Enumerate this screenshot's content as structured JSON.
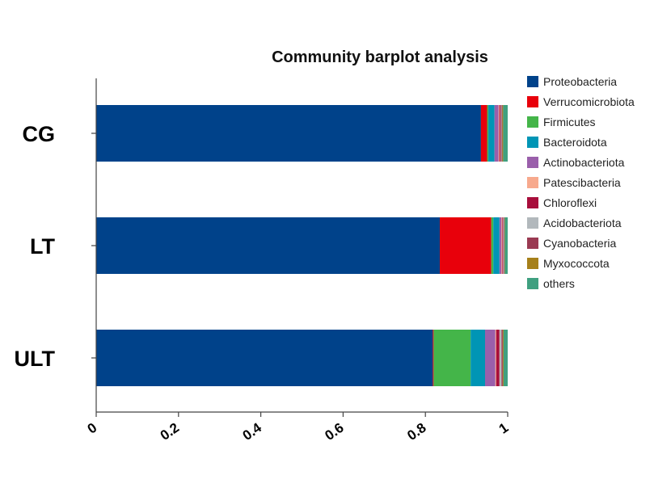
{
  "chart_data": {
    "type": "bar",
    "orientation": "horizontal",
    "stacked": true,
    "title": "Community barplot analysis",
    "xlabel": "",
    "ylabel": "",
    "xlim": [
      0,
      1
    ],
    "x_ticks": [
      "0",
      "0.2",
      "0.4",
      "0.6",
      "0.8",
      "1"
    ],
    "categories": [
      "CG",
      "LT",
      "ULT"
    ],
    "grid": false,
    "legend_position": "right",
    "series": [
      {
        "name": "Proteobacteria",
        "color": "#00428A",
        "values": [
          0.935,
          0.835,
          0.818
        ]
      },
      {
        "name": "Verrucomicrobiota",
        "color": "#E8000B",
        "values": [
          0.015,
          0.125,
          0.002
        ]
      },
      {
        "name": "Firmicutes",
        "color": "#44B549",
        "values": [
          0.003,
          0.005,
          0.09
        ]
      },
      {
        "name": "Bacteroidota",
        "color": "#0095B5",
        "values": [
          0.015,
          0.015,
          0.035
        ]
      },
      {
        "name": "Actinobacteriota",
        "color": "#9A5FAB",
        "values": [
          0.01,
          0.005,
          0.025
        ]
      },
      {
        "name": "Patescibacteria",
        "color": "#F7A98D",
        "values": [
          0.002,
          0.002,
          0.002
        ]
      },
      {
        "name": "Chloroflexi",
        "color": "#A80E3B",
        "values": [
          0.003,
          0.002,
          0.008
        ]
      },
      {
        "name": "Acidobacteriota",
        "color": "#B2B8BC",
        "values": [
          0.002,
          0.002,
          0.005
        ]
      },
      {
        "name": "Cyanobacteria",
        "color": "#9A3A52",
        "values": [
          0.002,
          0.001,
          0.003
        ]
      },
      {
        "name": "Myxococcota",
        "color": "#A6801A",
        "values": [
          0.002,
          0.001,
          0.002
        ]
      },
      {
        "name": "others",
        "color": "#3FA080",
        "values": [
          0.011,
          0.007,
          0.01
        ]
      }
    ]
  }
}
